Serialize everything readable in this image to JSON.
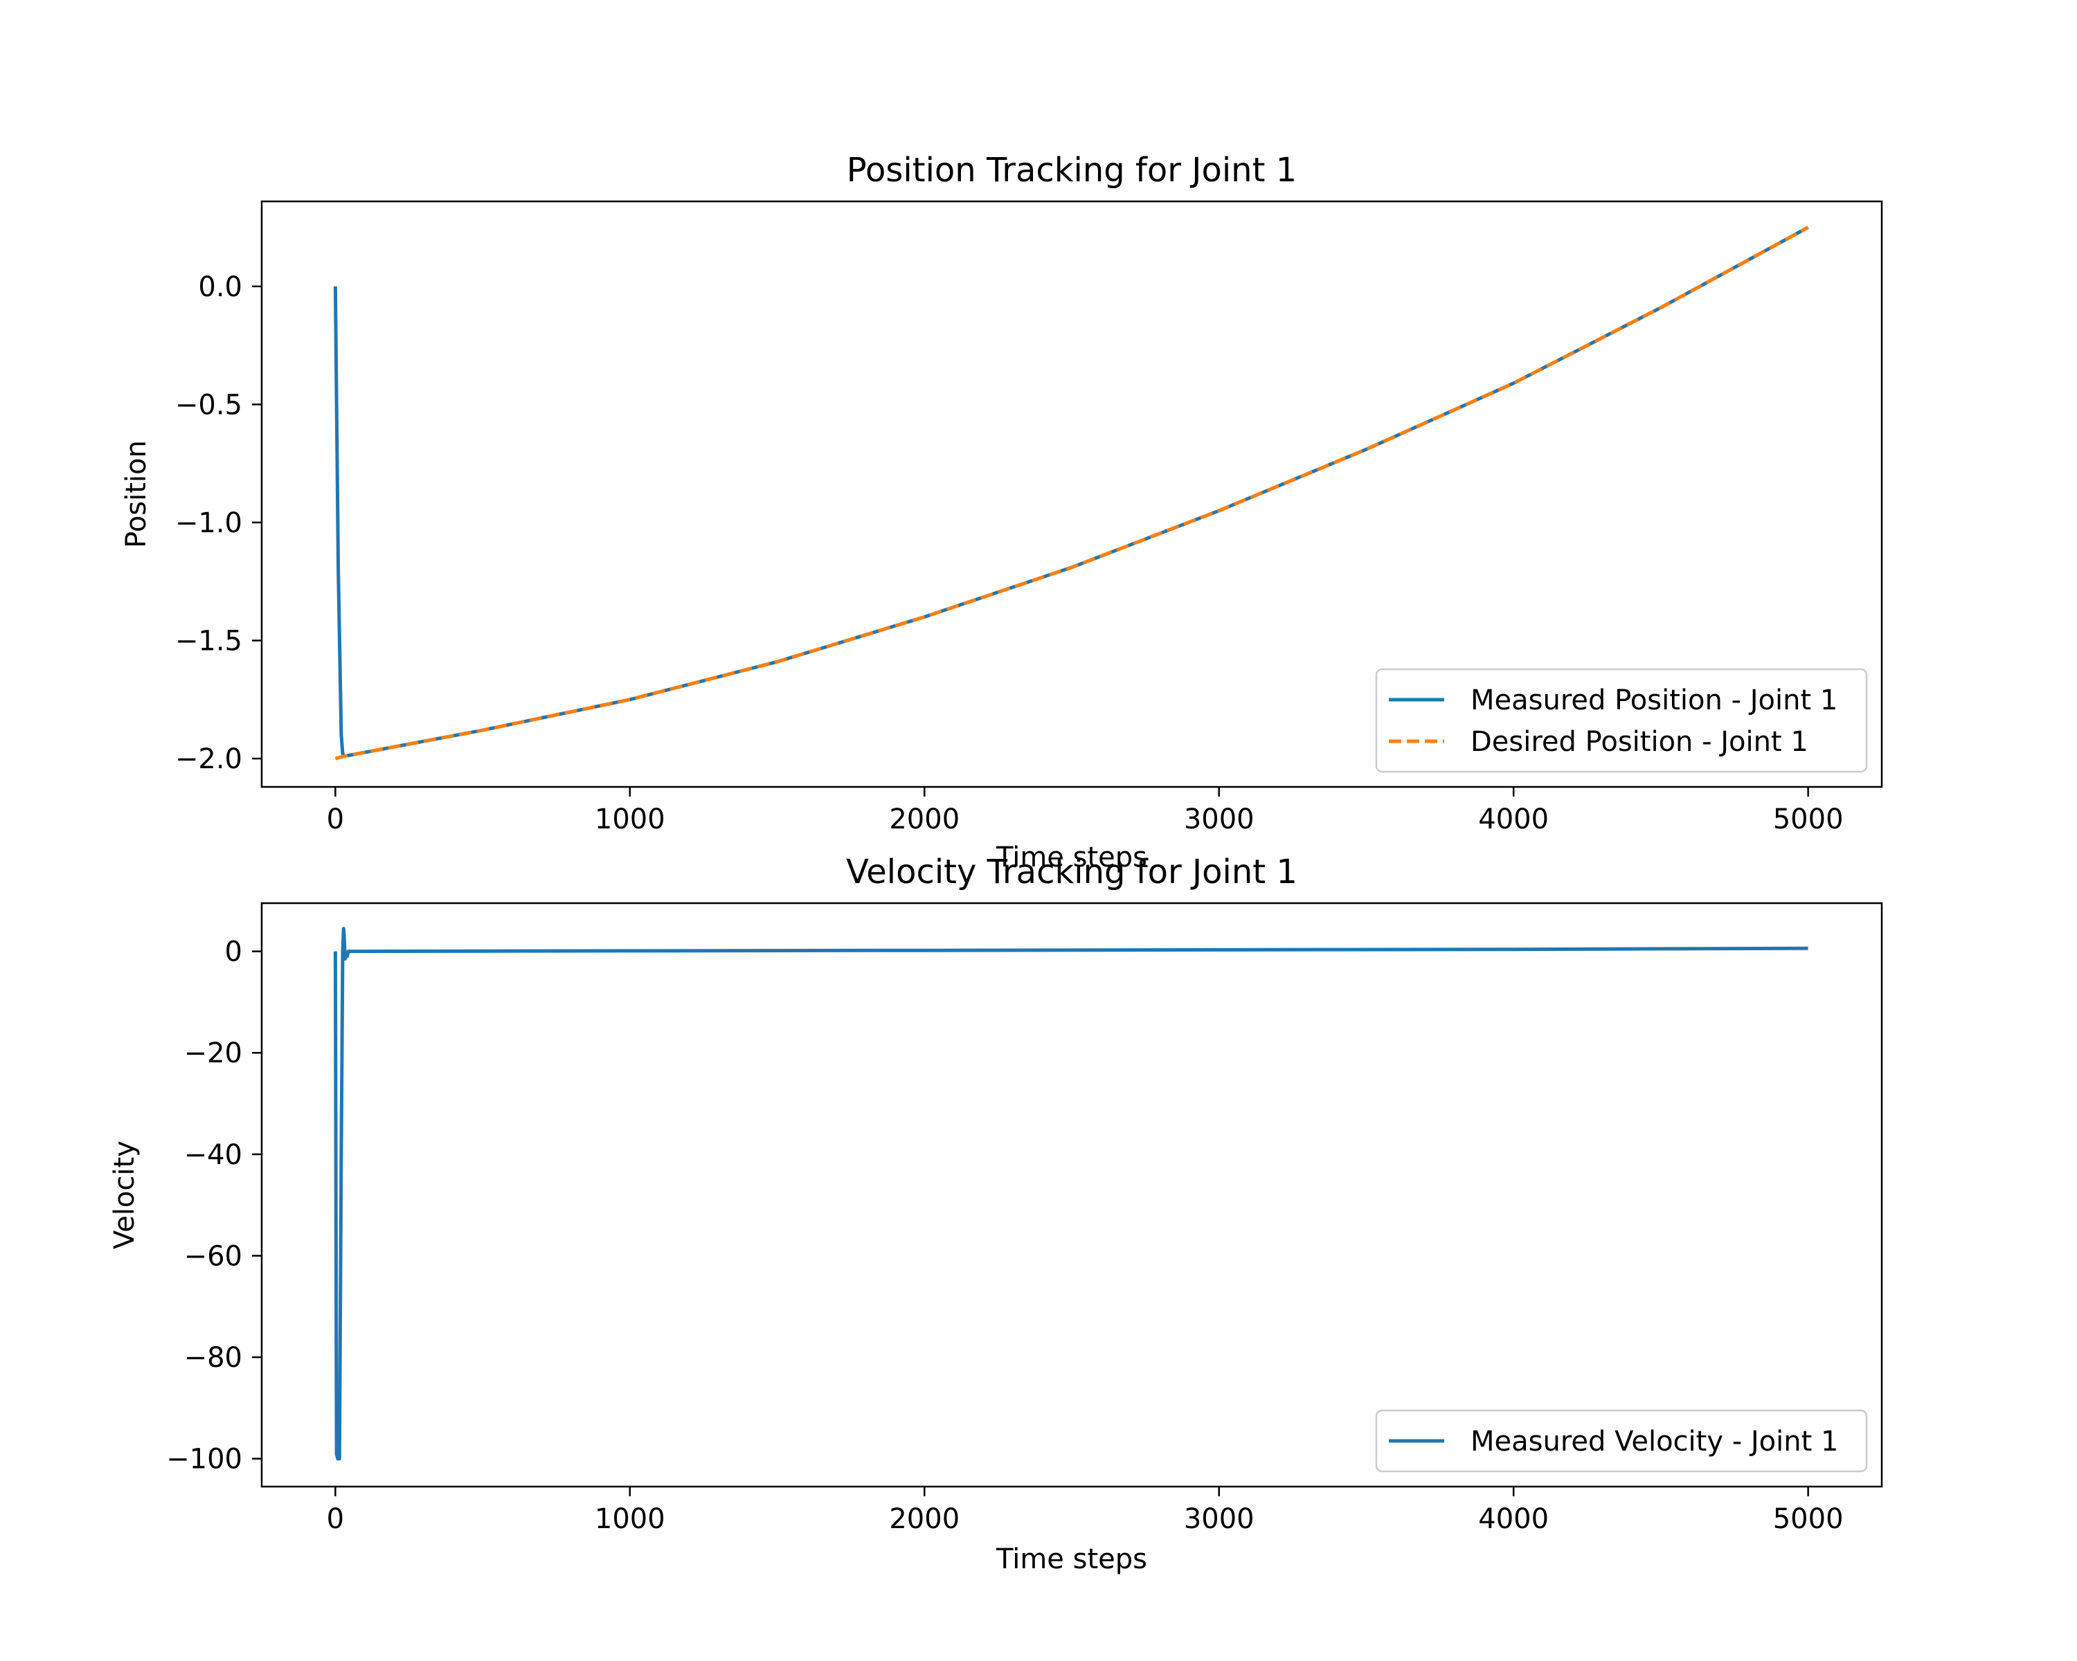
{
  "chart_data": [
    {
      "type": "line",
      "title": "Position Tracking for Joint 1",
      "xlabel": "Time steps",
      "ylabel": "Position",
      "xlim": [
        -250,
        5250
      ],
      "ylim": [
        -2.12,
        0.36
      ],
      "xticks": [
        0,
        1000,
        2000,
        3000,
        4000,
        5000
      ],
      "xtick_labels": [
        "0",
        "1000",
        "2000",
        "3000",
        "4000",
        "5000"
      ],
      "yticks": [
        0.0,
        -0.5,
        -1.0,
        -1.5,
        -2.0
      ],
      "ytick_labels": [
        "0.0",
        "−0.5",
        "−1.0",
        "−1.5",
        "−2.0"
      ],
      "grid": false,
      "legend": "lower-right",
      "series": [
        {
          "name": "Measured Position - Joint 1",
          "color": "#1f77b4",
          "style": "solid",
          "x": [
            0,
            10,
            20,
            25,
            30,
            500,
            1000,
            1500,
            2000,
            2500,
            3000,
            3500,
            4000,
            4500,
            5000
          ],
          "y": [
            0.0,
            -1.2,
            -1.9,
            -1.98,
            -1.99,
            -1.88,
            -1.75,
            -1.59,
            -1.4,
            -1.19,
            -0.95,
            -0.69,
            -0.41,
            -0.09,
            0.25
          ]
        },
        {
          "name": "Desired Position - Joint 1",
          "color": "#ff7f0e",
          "style": "dashed",
          "x": [
            0,
            30,
            500,
            1000,
            1500,
            2000,
            2500,
            3000,
            3500,
            4000,
            4500,
            5000
          ],
          "y": [
            -2.0,
            -1.99,
            -1.88,
            -1.75,
            -1.59,
            -1.4,
            -1.19,
            -0.95,
            -0.69,
            -0.41,
            -0.09,
            0.25
          ]
        }
      ]
    },
    {
      "type": "line",
      "title": "Velocity Tracking for Joint 1",
      "xlabel": "Time steps",
      "ylabel": "Velocity",
      "xlim": [
        -250,
        5250
      ],
      "ylim": [
        -105.5,
        9.5
      ],
      "xticks": [
        0,
        1000,
        2000,
        3000,
        4000,
        5000
      ],
      "xtick_labels": [
        "0",
        "1000",
        "2000",
        "3000",
        "4000",
        "5000"
      ],
      "yticks": [
        0,
        -20,
        -40,
        -60,
        -80,
        -100
      ],
      "ytick_labels": [
        "0",
        "−20",
        "−40",
        "−60",
        "−80",
        "−100"
      ],
      "grid": false,
      "legend": "lower-right",
      "series": [
        {
          "name": "Measured Velocity - Joint 1",
          "color": "#1f77b4",
          "style": "solid",
          "x": [
            0,
            4,
            8,
            14,
            20,
            25,
            28,
            30,
            33,
            36,
            40,
            44,
            50,
            1000,
            2000,
            3000,
            4000,
            5000
          ],
          "y": [
            0,
            -99,
            -100,
            -100,
            -40,
            0,
            4.5,
            3,
            -1.5,
            -0.5,
            -1,
            0,
            0,
            0.1,
            0.2,
            0.3,
            0.4,
            0.6
          ]
        }
      ]
    }
  ]
}
